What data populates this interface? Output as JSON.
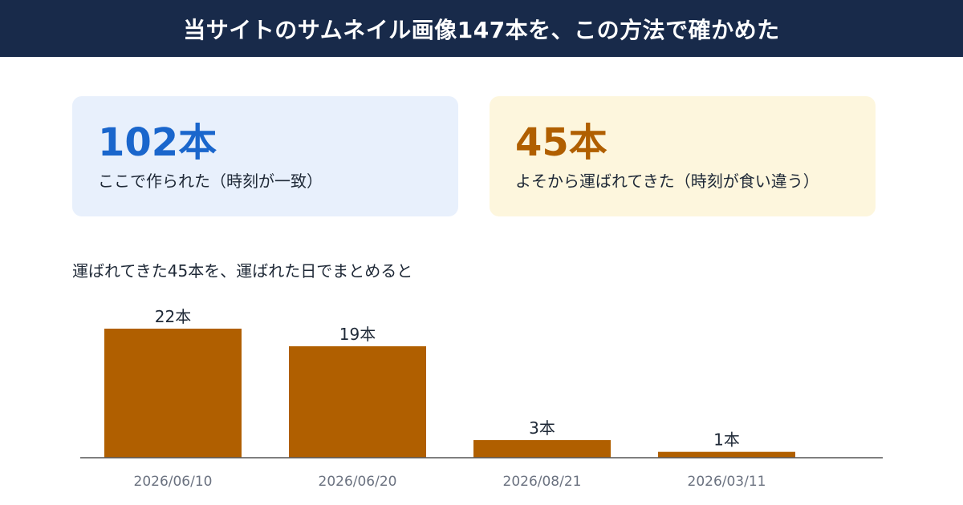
{
  "header": {
    "title": "当サイトのサムネイル画像147本を、この方法で確かめた"
  },
  "cards": [
    {
      "value": "102本",
      "desc": "ここで作られた（時刻が一致）"
    },
    {
      "value": "45本",
      "desc": "よそから運ばれてきた（時刻が食い違う）"
    }
  ],
  "chart_heading": "運ばれてきた45本を、運ばれた日でまとめると",
  "colors": {
    "header_bg": "#182a4a",
    "local_accent": "#1a66cc",
    "external_accent": "#b05f00",
    "bar": "#b05f00"
  },
  "chart_data": {
    "type": "bar",
    "categories": [
      "2026/06/10",
      "2026/06/20",
      "2026/08/21",
      "2026/03/11"
    ],
    "values": [
      22,
      19,
      3,
      1
    ],
    "value_labels": [
      "22本",
      "19本",
      "3本",
      "1本"
    ],
    "title": "",
    "xlabel": "",
    "ylabel": "",
    "ylim": [
      0,
      22
    ],
    "grid": false,
    "legend": "none"
  }
}
